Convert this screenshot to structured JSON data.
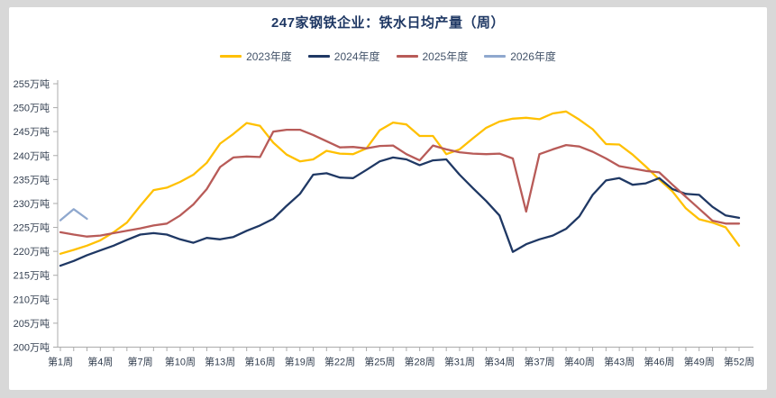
{
  "chart_data": {
    "type": "line",
    "title": "247家钢铁企业：铁水日均产量（周）",
    "y_unit": "万吨",
    "ylim": [
      200,
      255
    ],
    "y_ticks": [
      200,
      205,
      210,
      215,
      220,
      225,
      230,
      235,
      240,
      245,
      250,
      255
    ],
    "y_tick_labels": [
      "200万吨",
      "205万吨",
      "210万吨",
      "215万吨",
      "220万吨",
      "225万吨",
      "230万吨",
      "235万吨",
      "240万吨",
      "245万吨",
      "250万吨",
      "255万吨"
    ],
    "x_total_weeks": 52,
    "x_tick_weeks": [
      1,
      4,
      7,
      10,
      13,
      16,
      19,
      22,
      25,
      28,
      31,
      34,
      37,
      40,
      43,
      46,
      49,
      52
    ],
    "x_tick_labels": [
      "第1周",
      "第4周",
      "第7周",
      "第10周",
      "第13周",
      "第16周",
      "第19周",
      "第22周",
      "第25周",
      "第28周",
      "第31周",
      "第34周",
      "第37周",
      "第40周",
      "第43周",
      "第46周",
      "第49周",
      "第52周"
    ],
    "legend_position": "top",
    "grid": "off",
    "axis_color": "#ABABAB",
    "series": [
      {
        "name": "2023年度",
        "color": "#FFC000",
        "values": [
          219.5,
          220.3,
          221.2,
          222.3,
          224.0,
          226.0,
          229.5,
          232.8,
          233.3,
          234.5,
          236.0,
          238.5,
          242.5,
          244.5,
          246.8,
          246.2,
          242.7,
          240.2,
          238.8,
          239.2,
          241.0,
          240.4,
          240.3,
          241.5,
          245.3,
          246.9,
          246.5,
          244.1,
          244.1,
          240.3,
          241.3,
          243.6,
          245.8,
          247.1,
          247.7,
          247.9,
          247.6,
          248.8,
          249.2,
          247.5,
          245.5,
          242.4,
          242.3,
          240.2,
          237.7,
          235.0,
          232.5,
          229.0,
          226.7,
          226.0,
          225.0,
          221.2
        ]
      },
      {
        "name": "2024年度",
        "color": "#1F3864",
        "values": [
          217.0,
          218.0,
          219.2,
          220.2,
          221.2,
          222.4,
          223.5,
          223.8,
          223.5,
          222.5,
          221.8,
          222.8,
          222.5,
          223.0,
          224.3,
          225.4,
          226.8,
          229.5,
          232.0,
          236.0,
          236.3,
          235.4,
          235.3,
          237.0,
          238.8,
          239.6,
          239.2,
          238.0,
          239.0,
          239.2,
          236.0,
          233.2,
          230.5,
          227.5,
          219.9,
          221.5,
          222.5,
          223.3,
          224.7,
          227.3,
          231.8,
          234.8,
          235.3,
          233.9,
          234.2,
          235.3,
          233.0,
          232.0,
          231.8,
          229.3,
          227.5,
          227.0
        ]
      },
      {
        "name": "2025年度",
        "color": "#B85B58",
        "values": [
          224.0,
          223.5,
          223.1,
          223.3,
          223.8,
          224.3,
          224.8,
          225.4,
          225.8,
          227.5,
          229.8,
          233.0,
          237.6,
          239.6,
          239.8,
          239.7,
          245.0,
          245.4,
          245.4,
          244.3,
          243.0,
          241.7,
          241.8,
          241.5,
          242.0,
          242.1,
          240.3,
          239.0,
          242.1,
          241.3,
          240.7,
          240.4,
          240.3,
          240.4,
          239.4,
          228.3,
          240.3,
          241.3,
          242.2,
          241.9,
          240.8,
          239.4,
          237.8,
          237.3,
          236.8,
          236.5,
          233.9,
          231.4,
          228.9,
          226.4,
          225.8,
          225.8
        ]
      },
      {
        "name": "2026年度",
        "color": "#8FA8CE",
        "values": [
          226.5,
          228.8,
          226.8
        ]
      }
    ]
  }
}
